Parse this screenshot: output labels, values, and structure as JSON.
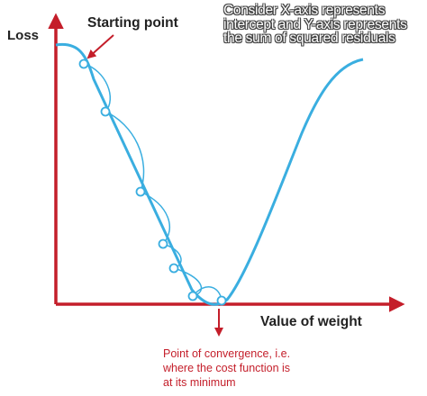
{
  "labels": {
    "y_axis": "Loss",
    "x_axis": "Value of weight",
    "starting_point": "Starting point",
    "convergence_line1": "Point of convergence, i.e.",
    "convergence_line2": "where the cost function is",
    "convergence_line3": "at its minimum"
  },
  "caption": "Consider X-axis represents intercept and Y-axis represents the sum of squared residuals",
  "colors": {
    "axis": "#c41e2a",
    "curve": "#3aaee0",
    "step_point_fill": "#ffffff",
    "text": "#222222",
    "annotation": "#c41e2a"
  },
  "step_points_count": 7
}
